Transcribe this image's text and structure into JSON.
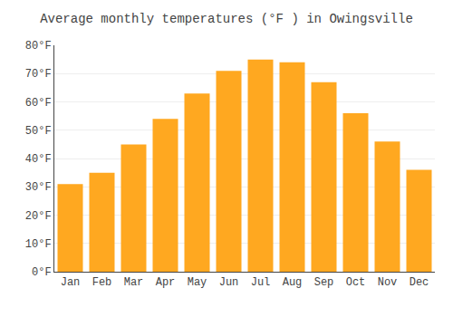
{
  "chart_data": {
    "type": "bar",
    "title": "Average monthly temperatures (°F ) in Owingsville",
    "categories": [
      "Jan",
      "Feb",
      "Mar",
      "Apr",
      "May",
      "Jun",
      "Jul",
      "Aug",
      "Sep",
      "Oct",
      "Nov",
      "Dec"
    ],
    "values": [
      31,
      35,
      45,
      54,
      63,
      71,
      75,
      74,
      67,
      56,
      46,
      36
    ],
    "color": "#FFA820",
    "ylim": [
      0,
      80
    ],
    "yticks": [
      {
        "value": 0,
        "label": "0°F"
      },
      {
        "value": 10,
        "label": "10°F"
      },
      {
        "value": 20,
        "label": "20°F"
      },
      {
        "value": 30,
        "label": "30°F"
      },
      {
        "value": 40,
        "label": "40°F"
      },
      {
        "value": 50,
        "label": "50°F"
      },
      {
        "value": 60,
        "label": "60°F"
      },
      {
        "value": 70,
        "label": "70°F"
      },
      {
        "value": 80,
        "label": "80°F"
      }
    ],
    "grid": true
  }
}
